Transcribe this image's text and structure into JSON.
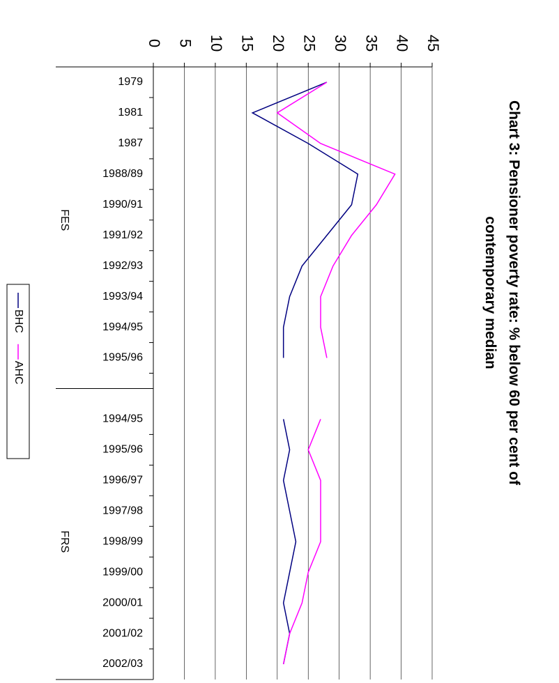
{
  "chart_data": {
    "type": "line",
    "title": "Chart 3: Pensioner poverty rate: % below 60 per cent of contemporary median",
    "categories": [
      "1979",
      "1981",
      "1987",
      "1988/89",
      "1990/91",
      "1991/92",
      "1992/93",
      "1993/94",
      "1994/95",
      "1995/96",
      null,
      "1994/95",
      "1995/96",
      "1996/97",
      "1997/98",
      "1998/99",
      "1999/00",
      "2000/01",
      "2001/02",
      "2002/03"
    ],
    "groups": [
      "FES",
      "FRS"
    ],
    "series": [
      {
        "name": "BHC",
        "color": "#000080",
        "values": [
          28,
          16,
          25,
          33,
          32,
          28,
          24,
          22,
          21,
          21,
          null,
          21,
          22,
          21,
          22,
          23,
          22,
          21,
          22,
          21
        ]
      },
      {
        "name": "AHC",
        "color": "#ff00ff",
        "values": [
          28,
          20,
          27,
          39,
          36,
          32,
          29,
          27,
          27,
          28,
          null,
          27,
          25,
          27,
          27,
          27,
          25,
          24,
          22,
          21
        ]
      }
    ],
    "ylim": [
      0,
      45
    ],
    "yticks": [
      0,
      5,
      10,
      15,
      20,
      25,
      30,
      35,
      40,
      45
    ],
    "grid": true
  }
}
